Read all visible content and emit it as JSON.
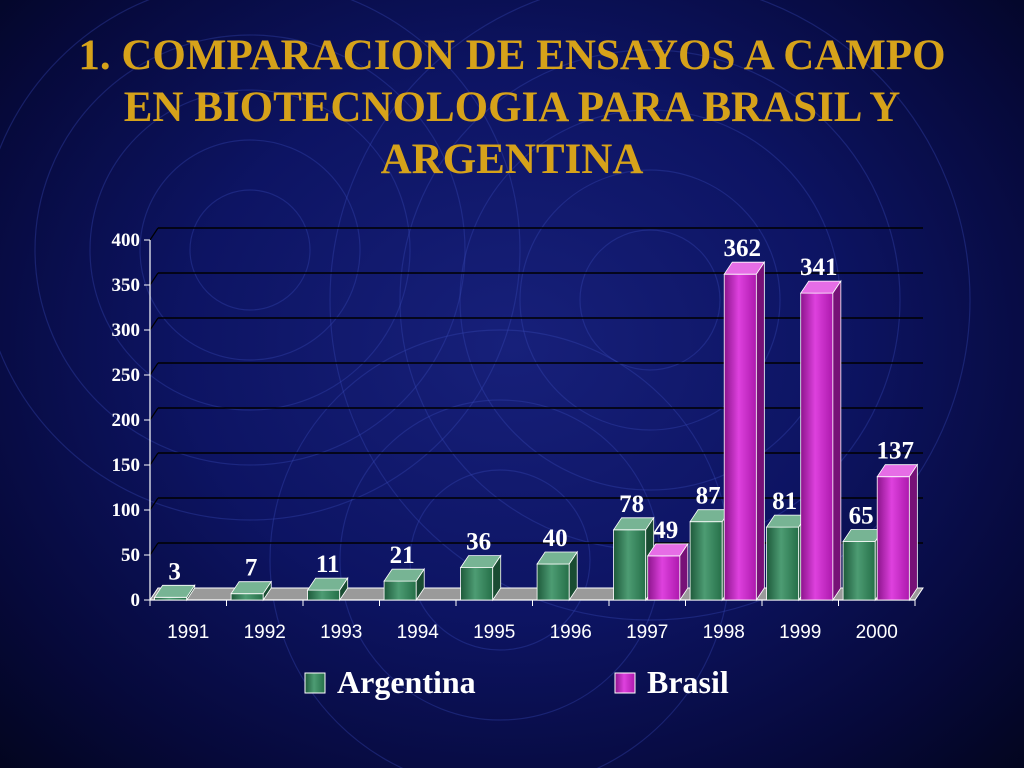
{
  "title_lines": [
    "1. COMPARACION DE ENSAYOS A CAMPO",
    "EN BIOTECNOLOGIA PARA BRASIL Y",
    "ARGENTINA"
  ],
  "colors": {
    "title": "#d6a21a",
    "argentina": "#2e8b5a",
    "brasil": "#d81fd8",
    "text": "#ffffff",
    "floor": "#9a9a9a"
  },
  "chart_data": {
    "type": "bar",
    "title": "1. COMPARACION DE ENSAYOS A CAMPO EN BIOTECNOLOGIA PARA BRASIL Y ARGENTINA",
    "categories": [
      "1991",
      "1992",
      "1993",
      "1994",
      "1995",
      "1996",
      "1997",
      "1998",
      "1999",
      "2000"
    ],
    "series": [
      {
        "name": "Argentina",
        "values": [
          3,
          7,
          11,
          21,
          36,
          40,
          78,
          87,
          81,
          65
        ]
      },
      {
        "name": "Brasil",
        "values": [
          null,
          null,
          null,
          null,
          null,
          null,
          49,
          362,
          341,
          137
        ]
      }
    ],
    "yticks": [
      "0",
      "50",
      "100",
      "150",
      "200",
      "250",
      "300",
      "350",
      "400"
    ],
    "ylim": [
      0,
      400
    ],
    "xlabel": "",
    "ylabel": "",
    "grid": true,
    "legend_position": "bottom",
    "style": "3d-bar"
  }
}
